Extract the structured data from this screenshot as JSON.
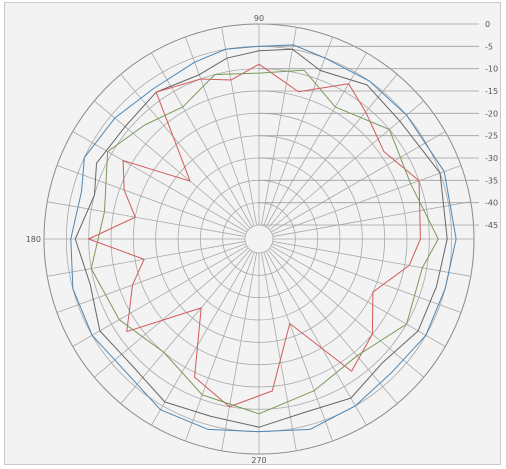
{
  "chart_data": {
    "type": "line",
    "subtype": "polar",
    "angle_labels": [
      {
        "angle": 90,
        "text": "90"
      },
      {
        "angle": 180,
        "text": "180"
      },
      {
        "angle": 270,
        "text": "270"
      }
    ],
    "radial_ticks": [
      "0",
      "-5",
      "-10",
      "-15",
      "-20",
      "-25",
      "-30",
      "-35",
      "-40",
      "-45"
    ],
    "radial_range": [
      0,
      -45
    ],
    "grid": true,
    "series": [
      {
        "color": "#4e86b3",
        "angles": [
          0,
          20,
          40,
          55,
          70,
          80,
          90,
          100,
          110,
          125,
          140,
          155,
          165,
          180,
          195,
          210,
          225,
          240,
          255,
          270,
          285,
          300,
          315,
          330,
          345
        ],
        "values": [
          -4,
          -4,
          -5,
          -5,
          -5,
          -4,
          -5,
          -5,
          -6,
          -7,
          -6,
          -5,
          -7,
          -6,
          -5,
          -5,
          -6,
          -4,
          -4,
          -5,
          -4,
          -5,
          -6,
          -5,
          -5
        ]
      },
      {
        "color": "#666666",
        "angles": [
          0,
          20,
          40,
          55,
          70,
          80,
          90,
          100,
          110,
          125,
          140,
          155,
          165,
          180,
          195,
          210,
          225,
          240,
          255,
          270,
          285,
          300,
          315,
          330,
          345
        ],
        "values": [
          -6,
          -5,
          -7,
          -6,
          -8,
          -5,
          -6,
          -7,
          -9,
          -8,
          -9,
          -8,
          -10,
          -7,
          -9,
          -7,
          -8,
          -6,
          -7,
          -6,
          -8,
          -7,
          -9,
          -7,
          -7
        ]
      },
      {
        "color": "#d05a5a",
        "angles": [
          0,
          20,
          35,
          50,
          60,
          75,
          90,
          100,
          110,
          125,
          140,
          150,
          160,
          170,
          180,
          190,
          200,
          215,
          230,
          245,
          260,
          275,
          290,
          305,
          320,
          335,
          350
        ],
        "values": [
          -12,
          -10,
          -14,
          -11,
          -8,
          -14,
          -9,
          -12,
          -10,
          -8,
          -28,
          -13,
          -16,
          -20,
          -10,
          -22,
          -18,
          -12,
          -28,
          -14,
          -10,
          -14,
          -28,
          -12,
          -15,
          -20,
          -14
        ]
      },
      {
        "color": "#7a9a5a",
        "angles": [
          0,
          20,
          40,
          60,
          75,
          90,
          105,
          120,
          135,
          150,
          170,
          190,
          210,
          230,
          250,
          270,
          290,
          310,
          330,
          350
        ],
        "values": [
          -8,
          -12,
          -10,
          -14,
          -9,
          -11,
          -10,
          -14,
          -12,
          -9,
          -13,
          -10,
          -12,
          -15,
          -11,
          -9,
          -12,
          -14,
          -10,
          -11
        ]
      }
    ]
  }
}
